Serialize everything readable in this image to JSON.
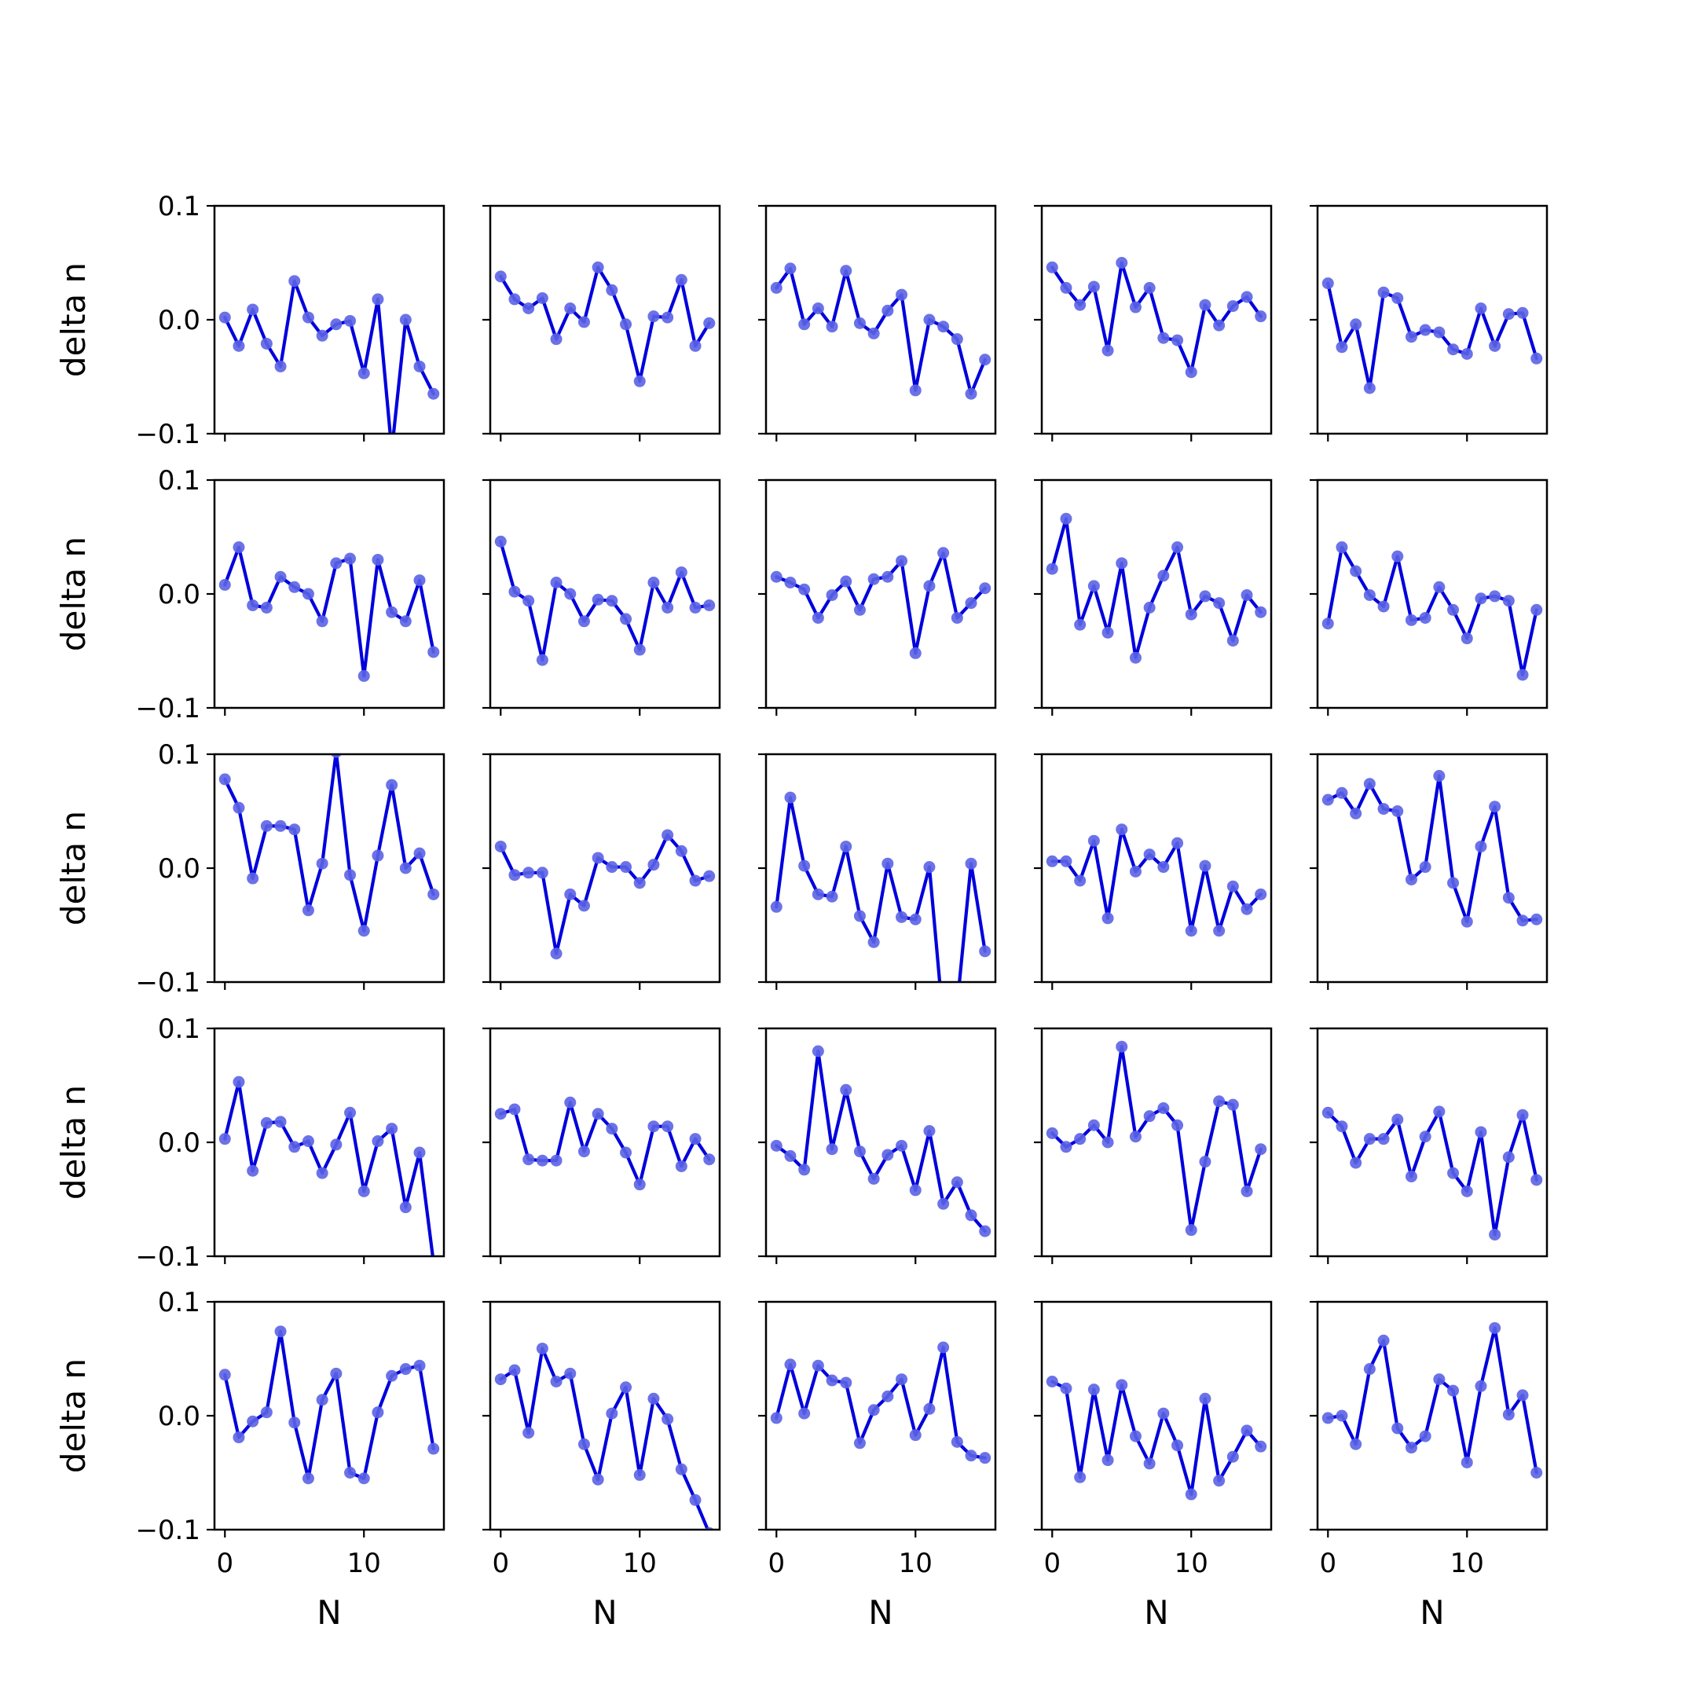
{
  "figure": {
    "rows": 5,
    "cols": 5,
    "line_color": "#0000dd",
    "marker_color": "#5b63e6",
    "background": "#ffffff"
  },
  "chart_data": {
    "type": "line",
    "layout": "5x5 grid of small multiples, shared x and y axes",
    "xlabel": "N",
    "ylabel": "delta n",
    "x": [
      0,
      1,
      2,
      3,
      4,
      5,
      6,
      7,
      8,
      9,
      10,
      11,
      12,
      13,
      14,
      15
    ],
    "xlim": [
      -0.75,
      15.75
    ],
    "ylim": [
      -0.1,
      0.1
    ],
    "xticks": [
      0,
      10
    ],
    "xtick_labels": [
      "0",
      "10"
    ],
    "yticks": [
      0.1,
      0.0,
      -0.1
    ],
    "ytick_labels": [
      "0.1",
      "0.0",
      "−0.1"
    ],
    "grid": false,
    "legend": "none",
    "series": [
      {
        "values": [
          0.002,
          -0.023,
          0.009,
          -0.021,
          -0.041,
          0.034,
          0.002,
          -0.014,
          -0.004,
          -0.001,
          -0.047,
          0.018,
          -0.115,
          0.0,
          -0.041,
          -0.065
        ]
      },
      {
        "values": [
          0.038,
          0.018,
          0.01,
          0.019,
          -0.017,
          0.01,
          -0.002,
          0.046,
          0.026,
          -0.004,
          -0.054,
          0.003,
          0.002,
          0.035,
          -0.023,
          -0.003
        ]
      },
      {
        "values": [
          0.028,
          0.045,
          -0.004,
          0.01,
          -0.006,
          0.043,
          -0.003,
          -0.012,
          0.008,
          0.022,
          -0.062,
          0.0,
          -0.006,
          -0.017,
          -0.065,
          -0.035
        ]
      },
      {
        "values": [
          0.046,
          0.028,
          0.013,
          0.029,
          -0.027,
          0.05,
          0.011,
          0.028,
          -0.016,
          -0.018,
          -0.046,
          0.013,
          -0.005,
          0.012,
          0.02,
          0.003
        ]
      },
      {
        "values": [
          0.032,
          -0.024,
          -0.004,
          -0.06,
          0.024,
          0.019,
          -0.015,
          -0.009,
          -0.011,
          -0.026,
          -0.03,
          0.01,
          -0.023,
          0.005,
          0.006,
          -0.034
        ]
      },
      {
        "values": [
          0.008,
          0.041,
          -0.01,
          -0.012,
          0.015,
          0.006,
          0.0,
          -0.024,
          0.027,
          0.031,
          -0.072,
          0.03,
          -0.016,
          -0.024,
          0.012,
          -0.051
        ]
      },
      {
        "values": [
          0.046,
          0.002,
          -0.006,
          -0.058,
          0.01,
          0.0,
          -0.024,
          -0.005,
          -0.006,
          -0.022,
          -0.049,
          0.01,
          -0.012,
          0.019,
          -0.012,
          -0.01
        ]
      },
      {
        "values": [
          0.015,
          0.01,
          0.004,
          -0.021,
          -0.001,
          0.011,
          -0.014,
          0.013,
          0.015,
          0.029,
          -0.052,
          0.007,
          0.036,
          -0.021,
          -0.008,
          0.005
        ]
      },
      {
        "values": [
          0.022,
          0.066,
          -0.027,
          0.007,
          -0.034,
          0.027,
          -0.056,
          -0.012,
          0.016,
          0.041,
          -0.018,
          -0.002,
          -0.008,
          -0.041,
          -0.001,
          -0.016
        ]
      },
      {
        "values": [
          -0.026,
          0.041,
          0.02,
          -0.001,
          -0.011,
          0.033,
          -0.023,
          -0.021,
          0.006,
          -0.014,
          -0.039,
          -0.004,
          -0.002,
          -0.006,
          -0.071,
          -0.014
        ]
      },
      {
        "values": [
          0.078,
          0.053,
          -0.009,
          0.037,
          0.037,
          0.034,
          -0.037,
          0.004,
          0.102,
          -0.006,
          -0.055,
          0.011,
          0.073,
          0.0,
          0.013,
          -0.023
        ]
      },
      {
        "values": [
          0.019,
          -0.006,
          -0.004,
          -0.004,
          -0.075,
          -0.023,
          -0.033,
          0.009,
          0.001,
          0.001,
          -0.013,
          0.003,
          0.029,
          0.015,
          -0.011,
          -0.007
        ]
      },
      {
        "values": [
          -0.034,
          0.062,
          0.002,
          -0.023,
          -0.025,
          0.019,
          -0.042,
          -0.065,
          0.004,
          -0.043,
          -0.045,
          0.001,
          -0.135,
          -0.12,
          0.004,
          -0.073
        ]
      },
      {
        "values": [
          0.006,
          0.006,
          -0.011,
          0.024,
          -0.044,
          0.034,
          -0.003,
          0.012,
          0.001,
          0.022,
          -0.055,
          0.002,
          -0.055,
          -0.016,
          -0.036,
          -0.023
        ]
      },
      {
        "values": [
          0.06,
          0.066,
          0.048,
          0.074,
          0.052,
          0.05,
          -0.01,
          0.001,
          0.081,
          -0.013,
          -0.047,
          0.019,
          0.054,
          -0.026,
          -0.046,
          -0.045
        ]
      },
      {
        "values": [
          0.003,
          0.053,
          -0.025,
          0.017,
          0.018,
          -0.004,
          0.001,
          -0.027,
          -0.002,
          0.026,
          -0.043,
          0.001,
          0.012,
          -0.057,
          -0.009,
          -0.105
        ]
      },
      {
        "values": [
          0.025,
          0.029,
          -0.015,
          -0.016,
          -0.016,
          0.035,
          -0.008,
          0.025,
          0.012,
          -0.009,
          -0.037,
          0.014,
          0.014,
          -0.021,
          0.003,
          -0.015
        ]
      },
      {
        "values": [
          -0.003,
          -0.012,
          -0.024,
          0.08,
          -0.006,
          0.046,
          -0.008,
          -0.032,
          -0.011,
          -0.003,
          -0.042,
          0.01,
          -0.054,
          -0.035,
          -0.064,
          -0.078
        ]
      },
      {
        "values": [
          0.008,
          -0.004,
          0.003,
          0.015,
          0.0,
          0.084,
          0.005,
          0.023,
          0.03,
          0.015,
          -0.077,
          -0.017,
          0.036,
          0.033,
          -0.043,
          -0.006
        ]
      },
      {
        "values": [
          0.026,
          0.014,
          -0.018,
          0.003,
          0.003,
          0.02,
          -0.03,
          0.005,
          0.027,
          -0.027,
          -0.043,
          0.009,
          -0.081,
          -0.013,
          0.024,
          -0.033
        ]
      },
      {
        "values": [
          0.036,
          -0.019,
          -0.005,
          0.003,
          0.074,
          -0.006,
          -0.055,
          0.014,
          0.037,
          -0.05,
          -0.055,
          0.003,
          0.035,
          0.041,
          0.044,
          -0.029
        ]
      },
      {
        "values": [
          0.032,
          0.04,
          -0.015,
          0.059,
          0.03,
          0.037,
          -0.025,
          -0.056,
          0.002,
          0.025,
          -0.052,
          0.015,
          -0.003,
          -0.047,
          -0.074,
          -0.103
        ]
      },
      {
        "values": [
          -0.002,
          0.045,
          0.002,
          0.044,
          0.031,
          0.029,
          -0.024,
          0.005,
          0.017,
          0.032,
          -0.017,
          0.006,
          0.06,
          -0.023,
          -0.035,
          -0.037
        ]
      },
      {
        "values": [
          0.03,
          0.024,
          -0.054,
          0.023,
          -0.039,
          0.027,
          -0.018,
          -0.042,
          0.002,
          -0.026,
          -0.069,
          0.015,
          -0.057,
          -0.036,
          -0.013,
          -0.027
        ]
      },
      {
        "values": [
          -0.002,
          0.0,
          -0.025,
          0.041,
          0.066,
          -0.011,
          -0.028,
          -0.018,
          0.032,
          0.022,
          -0.041,
          0.026,
          0.077,
          0.001,
          0.018,
          -0.05
        ]
      }
    ]
  }
}
